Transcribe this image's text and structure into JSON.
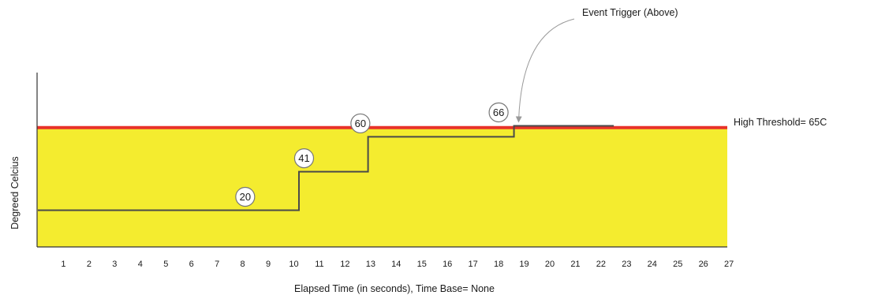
{
  "chart_data": {
    "type": "line",
    "title": "",
    "xlabel": "Elapsed Time (in seconds), Time Base= None",
    "ylabel": "Degreed Celcius",
    "x_ticks": [
      1,
      2,
      3,
      4,
      5,
      6,
      7,
      8,
      9,
      10,
      11,
      12,
      13,
      14,
      15,
      16,
      17,
      18,
      19,
      20,
      21,
      22,
      23,
      24,
      25,
      26,
      27
    ],
    "xlim": [
      0,
      27
    ],
    "ylim": [
      0,
      95
    ],
    "step_series": {
      "x": [
        0,
        10.2,
        12.9,
        18.6,
        22.5
      ],
      "values": [
        20,
        41,
        60,
        66,
        66
      ]
    },
    "value_labels": [
      {
        "text": "20",
        "x": 8.1,
        "y": 20
      },
      {
        "text": "41",
        "x": 10.4,
        "y": 41
      },
      {
        "text": "60",
        "x": 12.6,
        "y": 60
      },
      {
        "text": "66",
        "x": 18.0,
        "y": 66
      }
    ],
    "threshold": {
      "label": "High Threshold= 65C",
      "value": 65,
      "color": "#e8322a",
      "fill_color": "#f4ec2f"
    },
    "annotation": {
      "text": "Event Trigger (Above)"
    }
  }
}
